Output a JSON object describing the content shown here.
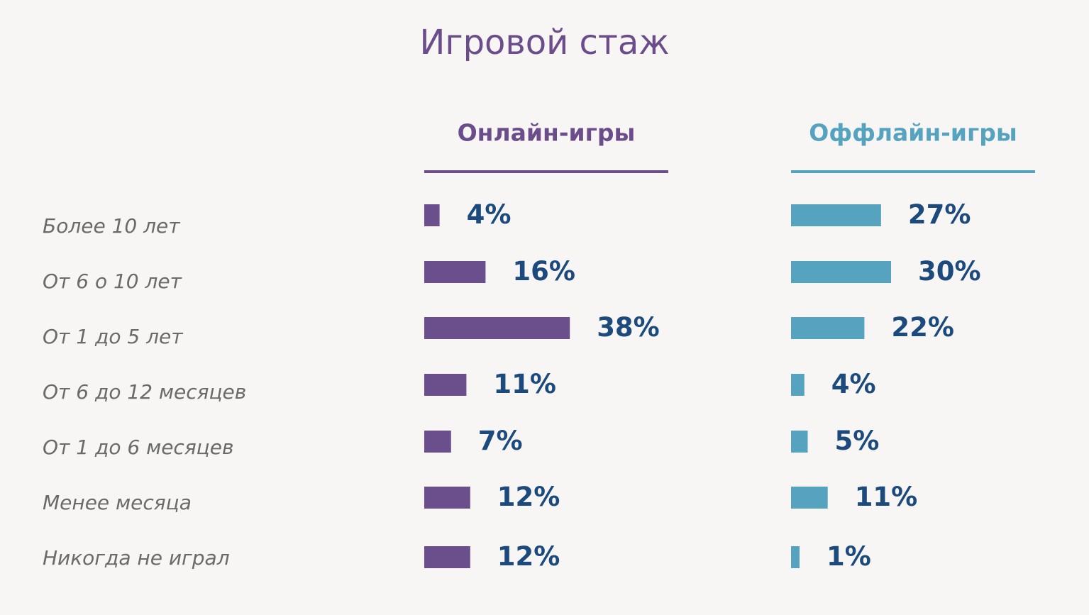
{
  "chart_data": {
    "type": "bar",
    "title": "Игровой стаж",
    "categories": [
      "Более 10 лет",
      "От 6 о 10 лет",
      "От 1 до 5 лет",
      "От 6 до 12 месяцев",
      "От 1 до 6 месяцев",
      "Менее месяца",
      "Никогда не играл"
    ],
    "series": [
      {
        "name": "Онлайн-игры",
        "color": "#6b4f8d",
        "values": [
          4,
          16,
          38,
          11,
          7,
          12,
          12
        ],
        "labels": [
          "4%",
          "16%",
          "38%",
          "11%",
          "7%",
          "12%",
          "12%"
        ]
      },
      {
        "name": "Оффлайн-игры",
        "color": "#56a3c0",
        "values": [
          27,
          30,
          22,
          4,
          5,
          11,
          1
        ],
        "labels": [
          "27%",
          "30%",
          "22%",
          "4%",
          "5%",
          "11%",
          "1%"
        ]
      }
    ],
    "value_color": "#1c4a7d",
    "header_colors": [
      "#6b4d8c",
      "#56a3c0"
    ]
  }
}
